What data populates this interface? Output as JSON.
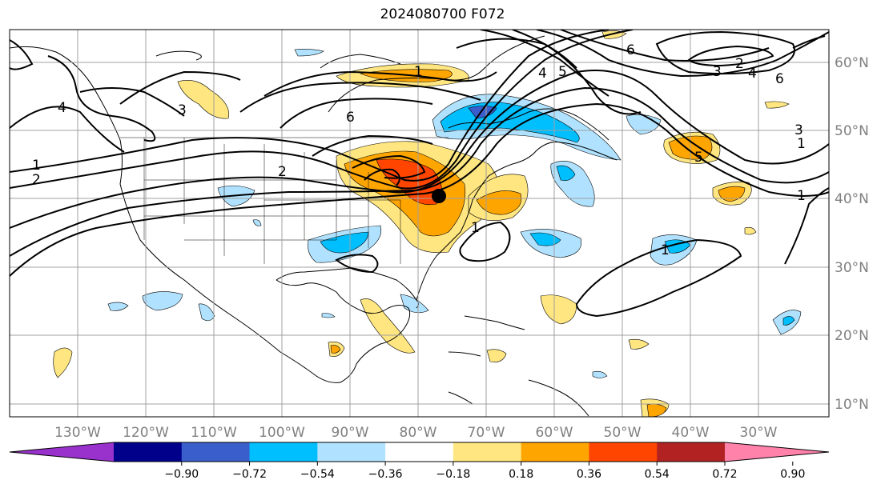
{
  "title": "2024080700 F072",
  "lon_labels": [
    "130°W",
    "120°W",
    "110°W",
    "100°W",
    "90°W",
    "80°W",
    "70°W",
    "60°W",
    "50°W",
    "40°W",
    "30°W"
  ],
  "lat_labels": [
    "60°N",
    "50°N",
    "40°N",
    "30°N",
    "20°N",
    "10°N"
  ],
  "colorbar": {
    "colors": [
      "#9932cc",
      "#00008b",
      "#3a5fcd",
      "#00bfff",
      "#b0e2ff",
      "#ffffff",
      "#ffe680",
      "#ffa500",
      "#ff4500",
      "#b22222",
      "#ff82ab"
    ],
    "ticks": [
      "−0.90",
      "−0.72",
      "−0.54",
      "−0.36",
      "−0.18",
      "0.18",
      "0.36",
      "0.54",
      "0.72",
      "0.90"
    ]
  },
  "contour_labels": [
    "1",
    "2",
    "3",
    "4",
    "5",
    "6"
  ],
  "marker": "black-dot"
}
